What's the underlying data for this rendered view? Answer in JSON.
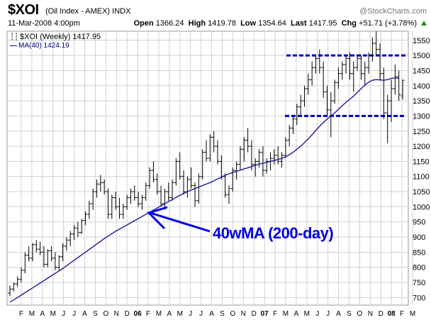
{
  "header": {
    "symbol": "$XOI",
    "subtitle": "(Oil Index - AMEX) INDX",
    "copyright": "@StockCharts.com",
    "date": "11-Mar-2008 4:00pm",
    "open_label": "Open",
    "open": "1366.24",
    "high_label": "High",
    "high": "1419.78",
    "low_label": "Low",
    "low": "1354.64",
    "last_label": "Last",
    "last": "1417.95",
    "chg_label": "Chg",
    "chg": "+51.71 (+3.78%)",
    "chg_color": "#2a8a2a"
  },
  "legend": {
    "price": "$XOI (Weekly) 1417.95",
    "ma": "MA(40) 1424.19"
  },
  "annotation": {
    "text": "40wMA (200-day)",
    "color": "#0000dd"
  },
  "colors": {
    "price_bars": "#000000",
    "ma_line": "#1a1aa0",
    "resistance": "#0000cc",
    "grid": "#d0d0d0",
    "arrow": "#0000ee"
  },
  "chart_data": {
    "type": "ohlc",
    "x_axis": {
      "labels": [
        "F",
        "M",
        "A",
        "M",
        "J",
        "J",
        "A",
        "S",
        "O",
        "N",
        "D",
        "06",
        "F",
        "M",
        "A",
        "M",
        "J",
        "J",
        "A",
        "S",
        "O",
        "N",
        "D",
        "07",
        "F",
        "M",
        "A",
        "M",
        "J",
        "J",
        "A",
        "S",
        "O",
        "N",
        "D",
        "08",
        "F",
        "M"
      ],
      "bold": [
        "06",
        "07",
        "08"
      ]
    },
    "y_axis": {
      "ticks": [
        700,
        750,
        800,
        850,
        900,
        950,
        1000,
        1050,
        1100,
        1150,
        1200,
        1250,
        1300,
        1350,
        1400,
        1450,
        1500,
        1550
      ],
      "range": [
        675,
        1580
      ],
      "side": "right"
    },
    "grid": true,
    "horizontal_lines": [
      {
        "value": 1500,
        "style": "dashed"
      },
      {
        "value": 1300,
        "style": "dashed"
      }
    ],
    "series": [
      {
        "name": "$XOI (Weekly)",
        "kind": "ohlc",
        "values": [
          [
            715,
            740,
            705,
            728
          ],
          [
            728,
            750,
            720,
            745
          ],
          [
            745,
            770,
            735,
            760
          ],
          [
            760,
            800,
            750,
            790
          ],
          [
            790,
            850,
            780,
            840
          ],
          [
            840,
            870,
            820,
            830
          ],
          [
            830,
            880,
            820,
            875
          ],
          [
            875,
            890,
            850,
            860
          ],
          [
            860,
            885,
            840,
            850
          ],
          [
            850,
            870,
            800,
            810
          ],
          [
            810,
            860,
            800,
            855
          ],
          [
            855,
            870,
            820,
            830
          ],
          [
            830,
            850,
            790,
            800
          ],
          [
            800,
            840,
            790,
            835
          ],
          [
            835,
            880,
            820,
            870
          ],
          [
            870,
            900,
            855,
            890
          ],
          [
            890,
            920,
            870,
            910
          ],
          [
            910,
            940,
            890,
            930
          ],
          [
            930,
            950,
            900,
            915
          ],
          [
            915,
            960,
            910,
            955
          ],
          [
            955,
            985,
            940,
            975
          ],
          [
            975,
            1020,
            960,
            1010
          ],
          [
            1010,
            1060,
            990,
            1050
          ],
          [
            1050,
            1090,
            1030,
            1075
          ],
          [
            1075,
            1105,
            1050,
            1080
          ],
          [
            1080,
            1090,
            1040,
            1050
          ],
          [
            1050,
            1060,
            960,
            975
          ],
          [
            975,
            1040,
            960,
            1030
          ],
          [
            1030,
            1050,
            990,
            1000
          ],
          [
            1000,
            1030,
            960,
            975
          ],
          [
            975,
            1010,
            960,
            1000
          ],
          [
            1000,
            1040,
            990,
            1030
          ],
          [
            1030,
            1060,
            1010,
            1050
          ],
          [
            1050,
            1070,
            1020,
            1030
          ],
          [
            1030,
            1050,
            1000,
            1010
          ],
          [
            1010,
            1040,
            990,
            1030
          ],
          [
            1030,
            1080,
            1020,
            1070
          ],
          [
            1070,
            1130,
            1060,
            1120
          ],
          [
            1120,
            1150,
            1080,
            1090
          ],
          [
            1090,
            1110,
            1040,
            1050
          ],
          [
            1050,
            1070,
            1000,
            1010
          ],
          [
            1010,
            1060,
            990,
            1050
          ],
          [
            1050,
            1080,
            1020,
            1030
          ],
          [
            1030,
            1090,
            1020,
            1080
          ],
          [
            1080,
            1160,
            1070,
            1150
          ],
          [
            1150,
            1180,
            1090,
            1100
          ],
          [
            1100,
            1120,
            1040,
            1050
          ],
          [
            1050,
            1100,
            1030,
            1090
          ],
          [
            1090,
            1130,
            1060,
            1070
          ],
          [
            1070,
            1080,
            1000,
            1020
          ],
          [
            1020,
            1110,
            1010,
            1100
          ],
          [
            1100,
            1190,
            1090,
            1180
          ],
          [
            1180,
            1220,
            1150,
            1160
          ],
          [
            1160,
            1240,
            1150,
            1230
          ],
          [
            1230,
            1250,
            1180,
            1200
          ],
          [
            1200,
            1220,
            1140,
            1150
          ],
          [
            1150,
            1170,
            1090,
            1100
          ],
          [
            1100,
            1110,
            1030,
            1040
          ],
          [
            1040,
            1070,
            1010,
            1060
          ],
          [
            1060,
            1130,
            1050,
            1120
          ],
          [
            1120,
            1150,
            1090,
            1140
          ],
          [
            1140,
            1200,
            1120,
            1190
          ],
          [
            1190,
            1230,
            1150,
            1220
          ],
          [
            1220,
            1260,
            1180,
            1200
          ],
          [
            1200,
            1220,
            1120,
            1140
          ],
          [
            1140,
            1160,
            1100,
            1150
          ],
          [
            1150,
            1190,
            1130,
            1180
          ],
          [
            1180,
            1200,
            1100,
            1120
          ],
          [
            1120,
            1160,
            1110,
            1150
          ],
          [
            1150,
            1180,
            1120,
            1160
          ],
          [
            1160,
            1190,
            1140,
            1170
          ],
          [
            1170,
            1200,
            1140,
            1150
          ],
          [
            1150,
            1180,
            1130,
            1170
          ],
          [
            1170,
            1230,
            1160,
            1220
          ],
          [
            1220,
            1270,
            1200,
            1260
          ],
          [
            1260,
            1300,
            1240,
            1290
          ],
          [
            1290,
            1340,
            1270,
            1330
          ],
          [
            1330,
            1370,
            1300,
            1350
          ],
          [
            1350,
            1400,
            1330,
            1390
          ],
          [
            1390,
            1440,
            1370,
            1420
          ],
          [
            1420,
            1480,
            1400,
            1460
          ],
          [
            1460,
            1500,
            1440,
            1490
          ],
          [
            1490,
            1520,
            1440,
            1460
          ],
          [
            1460,
            1480,
            1360,
            1380
          ],
          [
            1380,
            1400,
            1300,
            1320
          ],
          [
            1320,
            1380,
            1230,
            1350
          ],
          [
            1350,
            1420,
            1340,
            1410
          ],
          [
            1410,
            1460,
            1390,
            1440
          ],
          [
            1440,
            1480,
            1420,
            1470
          ],
          [
            1470,
            1500,
            1440,
            1490
          ],
          [
            1490,
            1510,
            1420,
            1440
          ],
          [
            1440,
            1480,
            1380,
            1460
          ],
          [
            1460,
            1500,
            1450,
            1490
          ],
          [
            1490,
            1500,
            1420,
            1440
          ],
          [
            1440,
            1480,
            1400,
            1460
          ],
          [
            1460,
            1510,
            1440,
            1500
          ],
          [
            1500,
            1560,
            1480,
            1540
          ],
          [
            1540,
            1580,
            1500,
            1520
          ],
          [
            1520,
            1540,
            1420,
            1440
          ],
          [
            1440,
            1460,
            1290,
            1310
          ],
          [
            1310,
            1370,
            1210,
            1350
          ],
          [
            1350,
            1420,
            1280,
            1390
          ],
          [
            1390,
            1470,
            1370,
            1430
          ],
          [
            1430,
            1450,
            1350,
            1370
          ],
          [
            1366.24,
            1419.78,
            1354.64,
            1417.95
          ]
        ]
      },
      {
        "name": "MA(40)",
        "kind": "line",
        "values": [
          685,
          692,
          700,
          708,
          716,
          724,
          732,
          740,
          748,
          756,
          764,
          772,
          780,
          788,
          796,
          805,
          814,
          823,
          832,
          841,
          850,
          859,
          868,
          877,
          886,
          895,
          903,
          911,
          919,
          926,
          933,
          940,
          947,
          954,
          961,
          968,
          975,
          982,
          989,
          996,
          1003,
          1010,
          1017,
          1024,
          1031,
          1038,
          1044,
          1050,
          1055,
          1060,
          1065,
          1070,
          1075,
          1080,
          1086,
          1092,
          1098,
          1104,
          1109,
          1113,
          1117,
          1121,
          1125,
          1129,
          1133,
          1137,
          1141,
          1144,
          1147,
          1150,
          1153,
          1156,
          1160,
          1165,
          1172,
          1180,
          1190,
          1200,
          1212,
          1224,
          1238,
          1252,
          1266,
          1278,
          1290,
          1300,
          1310,
          1322,
          1334,
          1345,
          1355,
          1366,
          1378,
          1390,
          1402,
          1412,
          1418,
          1420,
          1419,
          1418,
          1420,
          1424,
          1426,
          1424.19
        ]
      }
    ]
  }
}
